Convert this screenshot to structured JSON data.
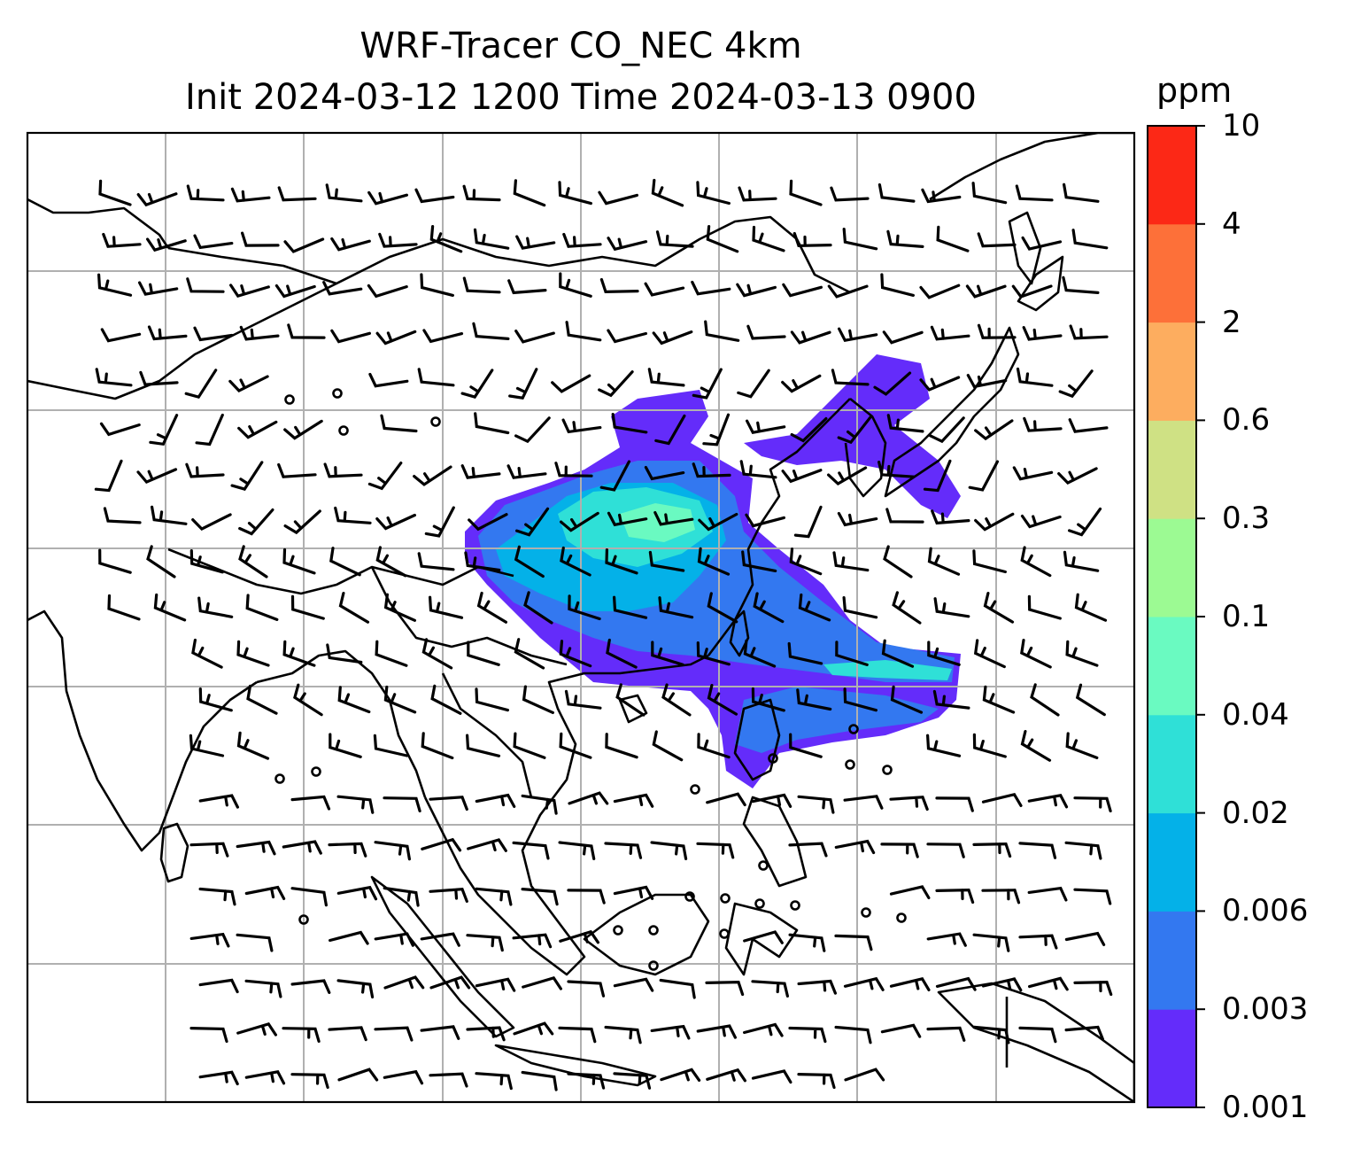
{
  "title_line1": "WRF-Tracer CO_NEC 4km",
  "title_line2": "Init 2024-03-12 1200 Time 2024-03-13 0900",
  "colorbar": {
    "unit": "ppm",
    "levels": [
      "0.001",
      "0.003",
      "0.006",
      "0.02",
      "0.04",
      "0.1",
      "0.3",
      "0.6",
      "2",
      "4",
      "10"
    ],
    "colors": [
      "#642cfa",
      "#3378f0",
      "#04b1e8",
      "#2fe0d7",
      "#6afac1",
      "#9cfa93",
      "#cfe184",
      "#fdad5f",
      "#fd7039",
      "#fc2816"
    ]
  },
  "map": {
    "gridlines": true,
    "field": "CO_NEC tracer concentration",
    "overlay": "wind barbs",
    "colors": {
      "coastline": "#000000",
      "grid": "#b0b0b0",
      "barb": "#000000"
    }
  }
}
